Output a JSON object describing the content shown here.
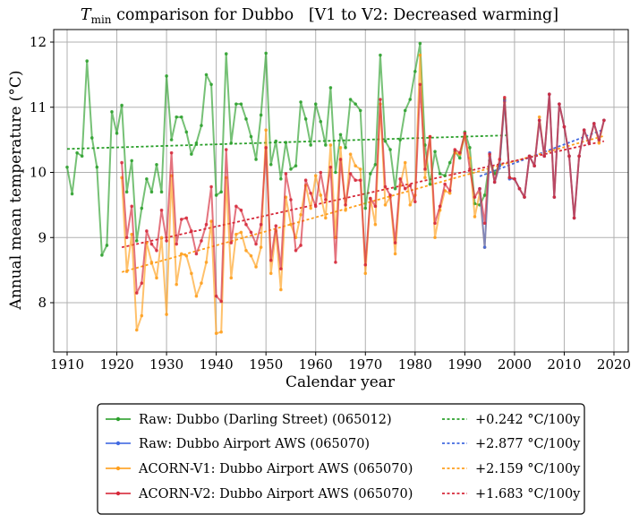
{
  "chart_data": {
    "type": "line",
    "title_prefix": "T",
    "title_subscript": "min",
    "title_suffix": " comparison for Dubbo   [V1 to V2: Decreased warming]",
    "xlabel": "Calendar year",
    "ylabel": "Annual mean temperature (°C)",
    "xlim": [
      1907,
      2022
    ],
    "ylim": [
      7.35,
      12.2
    ],
    "xticks": [
      1910,
      1920,
      1930,
      1940,
      1950,
      1960,
      1970,
      1980,
      1990,
      2000,
      2010,
      2020
    ],
    "yticks": [
      8,
      9,
      10,
      11,
      12
    ],
    "grid": true,
    "legend_position": "bottom-outside",
    "series": [
      {
        "name": "Raw: Dubbo (Darling Street) (065012)",
        "color": "#2ca02c",
        "x": [
          1910,
          1911,
          1912,
          1913,
          1914,
          1915,
          1916,
          1917,
          1918,
          1919,
          1920,
          1921,
          1922,
          1923,
          1924,
          1925,
          1926,
          1927,
          1928,
          1929,
          1930,
          1931,
          1932,
          1933,
          1934,
          1935,
          1936,
          1937,
          1938,
          1939,
          1940,
          1941,
          1942,
          1943,
          1944,
          1945,
          1946,
          1947,
          1948,
          1949,
          1950,
          1951,
          1952,
          1953,
          1954,
          1955,
          1956,
          1957,
          1958,
          1959,
          1960,
          1961,
          1962,
          1963,
          1964,
          1965,
          1966,
          1967,
          1968,
          1969,
          1970,
          1971,
          1972,
          1973,
          1974,
          1975,
          1976,
          1977,
          1978,
          1979,
          1980,
          1981,
          1982,
          1983,
          1984,
          1985,
          1986,
          1987,
          1988,
          1989,
          1990,
          1991,
          1992,
          1993,
          1994,
          1995,
          1996,
          1997,
          1998,
          1999
        ],
        "y": [
          10.08,
          9.67,
          10.3,
          10.25,
          11.71,
          10.53,
          10.08,
          8.73,
          8.88,
          10.93,
          10.6,
          11.03,
          9.7,
          10.18,
          8.95,
          9.45,
          9.9,
          9.7,
          10.12,
          9.7,
          11.48,
          10.5,
          10.85,
          10.85,
          10.62,
          10.28,
          10.45,
          10.72,
          11.5,
          11.35,
          9.65,
          9.7,
          11.82,
          10.45,
          11.05,
          11.05,
          10.82,
          10.55,
          10.2,
          10.88,
          11.83,
          10.12,
          10.48,
          9.9,
          10.46,
          10.05,
          10.1,
          11.08,
          10.82,
          10.42,
          11.05,
          10.78,
          10.42,
          11.3,
          10.0,
          10.58,
          10.38,
          11.12,
          11.05,
          10.95,
          9.45,
          9.98,
          10.12,
          11.8,
          10.48,
          10.35,
          9.75,
          10.5,
          10.95,
          11.12,
          11.55,
          11.98,
          10.42,
          9.82,
          10.32,
          9.98,
          9.95,
          10.15,
          10.32,
          10.22,
          10.62,
          10.38,
          9.52,
          9.5,
          9.65,
          10.18,
          9.98,
          10.12,
          11.12,
          9.92
        ]
      },
      {
        "name": "Raw: Dubbo Airport AWS (065070)",
        "color": "#4169e1",
        "x": [
          1993,
          1994,
          1995,
          1996,
          1997,
          1998,
          1999,
          2000,
          2001,
          2002,
          2003,
          2004,
          2005,
          2006,
          2007,
          2008,
          2009,
          2010,
          2011,
          2012,
          2013,
          2014,
          2015,
          2016,
          2017,
          2018
        ],
        "y": [
          9.75,
          8.85,
          10.3,
          9.85,
          10.1,
          11.1,
          9.9,
          9.9,
          9.75,
          9.62,
          10.25,
          10.1,
          10.8,
          10.25,
          11.2,
          9.62,
          11.05,
          10.7,
          10.25,
          9.3,
          10.25,
          10.65,
          10.45,
          10.75,
          10.5,
          10.8
        ]
      },
      {
        "name": "ACORN-V1: Dubbo Airport AWS (065070)",
        "color": "#ff9f1c",
        "x": [
          1921,
          1922,
          1923,
          1924,
          1925,
          1926,
          1927,
          1928,
          1929,
          1930,
          1931,
          1932,
          1933,
          1934,
          1935,
          1936,
          1937,
          1938,
          1939,
          1940,
          1941,
          1942,
          1943,
          1944,
          1945,
          1946,
          1947,
          1948,
          1949,
          1950,
          1951,
          1952,
          1953,
          1954,
          1955,
          1956,
          1957,
          1958,
          1959,
          1960,
          1961,
          1962,
          1963,
          1964,
          1965,
          1966,
          1967,
          1968,
          1969,
          1970,
          1971,
          1972,
          1973,
          1974,
          1975,
          1976,
          1977,
          1978,
          1979,
          1980,
          1981,
          1982,
          1983,
          1984,
          1985,
          1986,
          1987,
          1988,
          1989,
          1990,
          1991,
          1992,
          1993,
          1994,
          1995,
          1996,
          1997,
          1998,
          1999,
          2000,
          2001,
          2002,
          2003,
          2004,
          2005,
          2006,
          2007,
          2008,
          2009,
          2010,
          2011,
          2012,
          2013,
          2014,
          2015,
          2016,
          2017,
          2018
        ],
        "y": [
          9.92,
          8.48,
          9.05,
          7.58,
          7.8,
          8.92,
          8.62,
          8.38,
          9.0,
          7.82,
          9.95,
          8.28,
          8.75,
          8.72,
          8.45,
          8.1,
          8.3,
          8.62,
          9.25,
          7.53,
          7.55,
          9.92,
          8.38,
          9.05,
          9.08,
          8.8,
          8.72,
          8.55,
          8.85,
          10.65,
          8.45,
          9.1,
          8.2,
          9.62,
          9.2,
          9.0,
          9.35,
          9.8,
          9.45,
          9.95,
          9.65,
          9.3,
          10.42,
          9.0,
          10.38,
          9.42,
          10.28,
          10.1,
          10.05,
          8.45,
          9.6,
          9.2,
          11.05,
          9.5,
          9.62,
          8.75,
          9.8,
          10.15,
          9.5,
          9.65,
          11.8,
          9.92,
          10.55,
          9.0,
          9.42,
          9.72,
          9.68,
          10.3,
          10.28,
          10.55,
          10.22,
          9.32,
          9.68,
          8.85,
          10.25,
          9.85,
          10.1,
          11.08,
          9.92,
          9.9,
          9.75,
          9.62,
          10.25,
          10.1,
          10.85,
          10.25,
          11.2,
          9.62,
          11.05,
          10.7,
          10.25,
          9.3,
          10.25,
          10.65,
          10.45,
          10.75,
          10.45,
          10.8
        ]
      },
      {
        "name": "ACORN-V2: Dubbo Airport AWS (065070)",
        "color": "#d62839",
        "x": [
          1921,
          1922,
          1923,
          1924,
          1925,
          1926,
          1927,
          1928,
          1929,
          1930,
          1931,
          1932,
          1933,
          1934,
          1935,
          1936,
          1937,
          1938,
          1939,
          1940,
          1941,
          1942,
          1943,
          1944,
          1945,
          1946,
          1947,
          1948,
          1949,
          1950,
          1951,
          1952,
          1953,
          1954,
          1955,
          1956,
          1957,
          1958,
          1959,
          1960,
          1961,
          1962,
          1963,
          1964,
          1965,
          1966,
          1967,
          1968,
          1969,
          1970,
          1971,
          1972,
          1973,
          1974,
          1975,
          1976,
          1977,
          1978,
          1979,
          1980,
          1981,
          1982,
          1983,
          1984,
          1985,
          1986,
          1987,
          1988,
          1989,
          1990,
          1991,
          1992,
          1993,
          1994,
          1995,
          1996,
          1997,
          1998,
          1999,
          2000,
          2001,
          2002,
          2003,
          2004,
          2005,
          2006,
          2007,
          2008,
          2009,
          2010,
          2011,
          2012,
          2013,
          2014,
          2015,
          2016,
          2017,
          2018
        ],
        "y": [
          10.15,
          9.0,
          9.48,
          8.15,
          8.3,
          9.1,
          8.9,
          8.8,
          9.42,
          8.95,
          10.3,
          8.9,
          9.28,
          9.3,
          9.1,
          8.75,
          8.95,
          9.2,
          9.78,
          8.1,
          8.02,
          10.35,
          8.92,
          9.48,
          9.42,
          9.2,
          9.08,
          8.9,
          9.2,
          10.38,
          8.65,
          9.18,
          8.52,
          9.98,
          9.58,
          8.8,
          8.88,
          9.88,
          9.68,
          9.48,
          10.0,
          9.58,
          10.08,
          8.62,
          10.2,
          9.5,
          9.98,
          9.88,
          9.88,
          8.58,
          9.6,
          9.48,
          11.12,
          9.78,
          9.65,
          8.92,
          9.9,
          9.75,
          9.8,
          9.55,
          11.35,
          10.05,
          10.55,
          9.22,
          9.48,
          9.82,
          9.72,
          10.35,
          10.3,
          10.6,
          10.05,
          9.62,
          9.75,
          9.22,
          10.28,
          9.85,
          10.2,
          11.15,
          9.92,
          9.9,
          9.75,
          9.62,
          10.25,
          10.1,
          10.8,
          10.25,
          11.2,
          9.62,
          11.05,
          10.7,
          10.25,
          9.3,
          10.25,
          10.65,
          10.45,
          10.75,
          10.5,
          10.8
        ]
      }
    ],
    "trends": [
      {
        "label": "+0.242 °C/100y",
        "color": "#2ca02c",
        "x": [
          1910,
          1999
        ],
        "y": [
          10.36,
          10.57
        ]
      },
      {
        "label": "+2.877 °C/100y",
        "color": "#4169e1",
        "x": [
          1993,
          2018
        ],
        "y": [
          9.94,
          10.66
        ]
      },
      {
        "label": "+2.159 °C/100y",
        "color": "#ff9f1c",
        "x": [
          1921,
          2018
        ],
        "y": [
          8.47,
          10.56
        ]
      },
      {
        "label": "+1.683 °C/100y",
        "color": "#d62839",
        "x": [
          1921,
          2018
        ],
        "y": [
          8.85,
          10.48
        ]
      }
    ]
  }
}
